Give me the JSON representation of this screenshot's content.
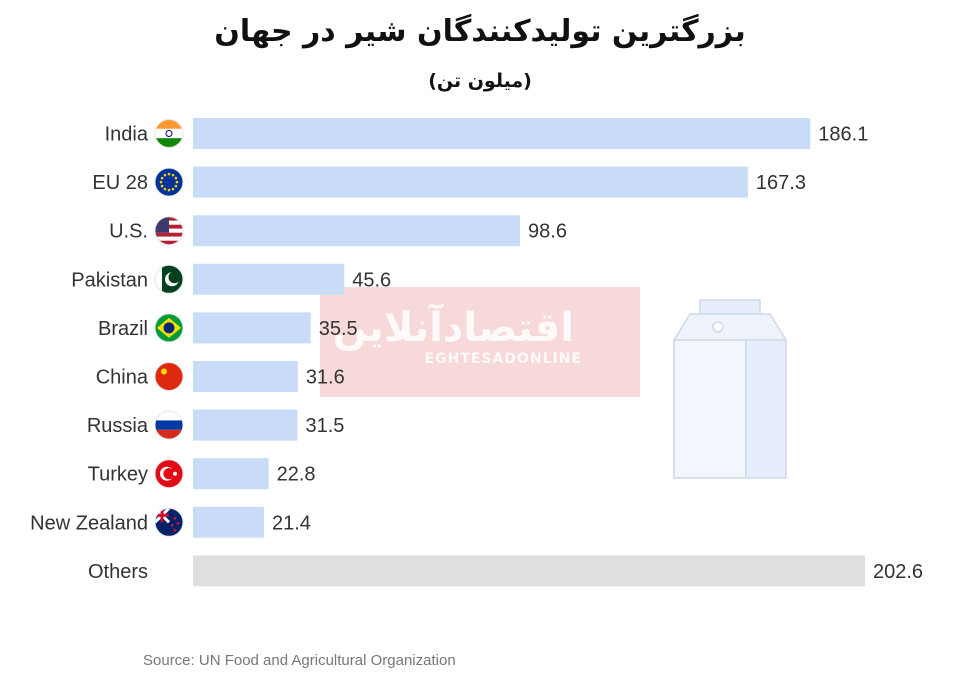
{
  "title": "بزرگترین تولیدکنندگان شیر در جهان",
  "subtitle": "(میلون تن)",
  "source": "Source: UN Food and Agricultural Organization",
  "watermark": {
    "fa": "اقتصادآنلاین",
    "en": "EGHTESADONLINE"
  },
  "colors": {
    "bar": "#c9dcf7",
    "others_bar": "#dedfe1",
    "text": "#333333"
  },
  "chart_data": {
    "type": "bar",
    "orientation": "horizontal",
    "unit": "million tonnes",
    "categories": [
      "India",
      "EU 28",
      "U.S.",
      "Pakistan",
      "Brazil",
      "China",
      "Russia",
      "Turkey",
      "New Zealand",
      "Others"
    ],
    "values": [
      186.1,
      167.3,
      98.6,
      45.6,
      35.5,
      31.6,
      31.5,
      22.8,
      21.4,
      202.6
    ],
    "value_labels": [
      "186.1",
      "167.3",
      "98.6",
      "45.6",
      "35.5",
      "31.6",
      "31.5",
      "22.8",
      "21.4",
      "202.6"
    ],
    "flags": [
      "india-flag-icon",
      "eu-flag-icon",
      "us-flag-icon",
      "pakistan-flag-icon",
      "brazil-flag-icon",
      "china-flag-icon",
      "russia-flag-icon",
      "turkey-flag-icon",
      "new-zealand-flag-icon",
      ""
    ],
    "xlim": [
      0,
      202.6
    ],
    "grid": false,
    "legend": "none"
  }
}
